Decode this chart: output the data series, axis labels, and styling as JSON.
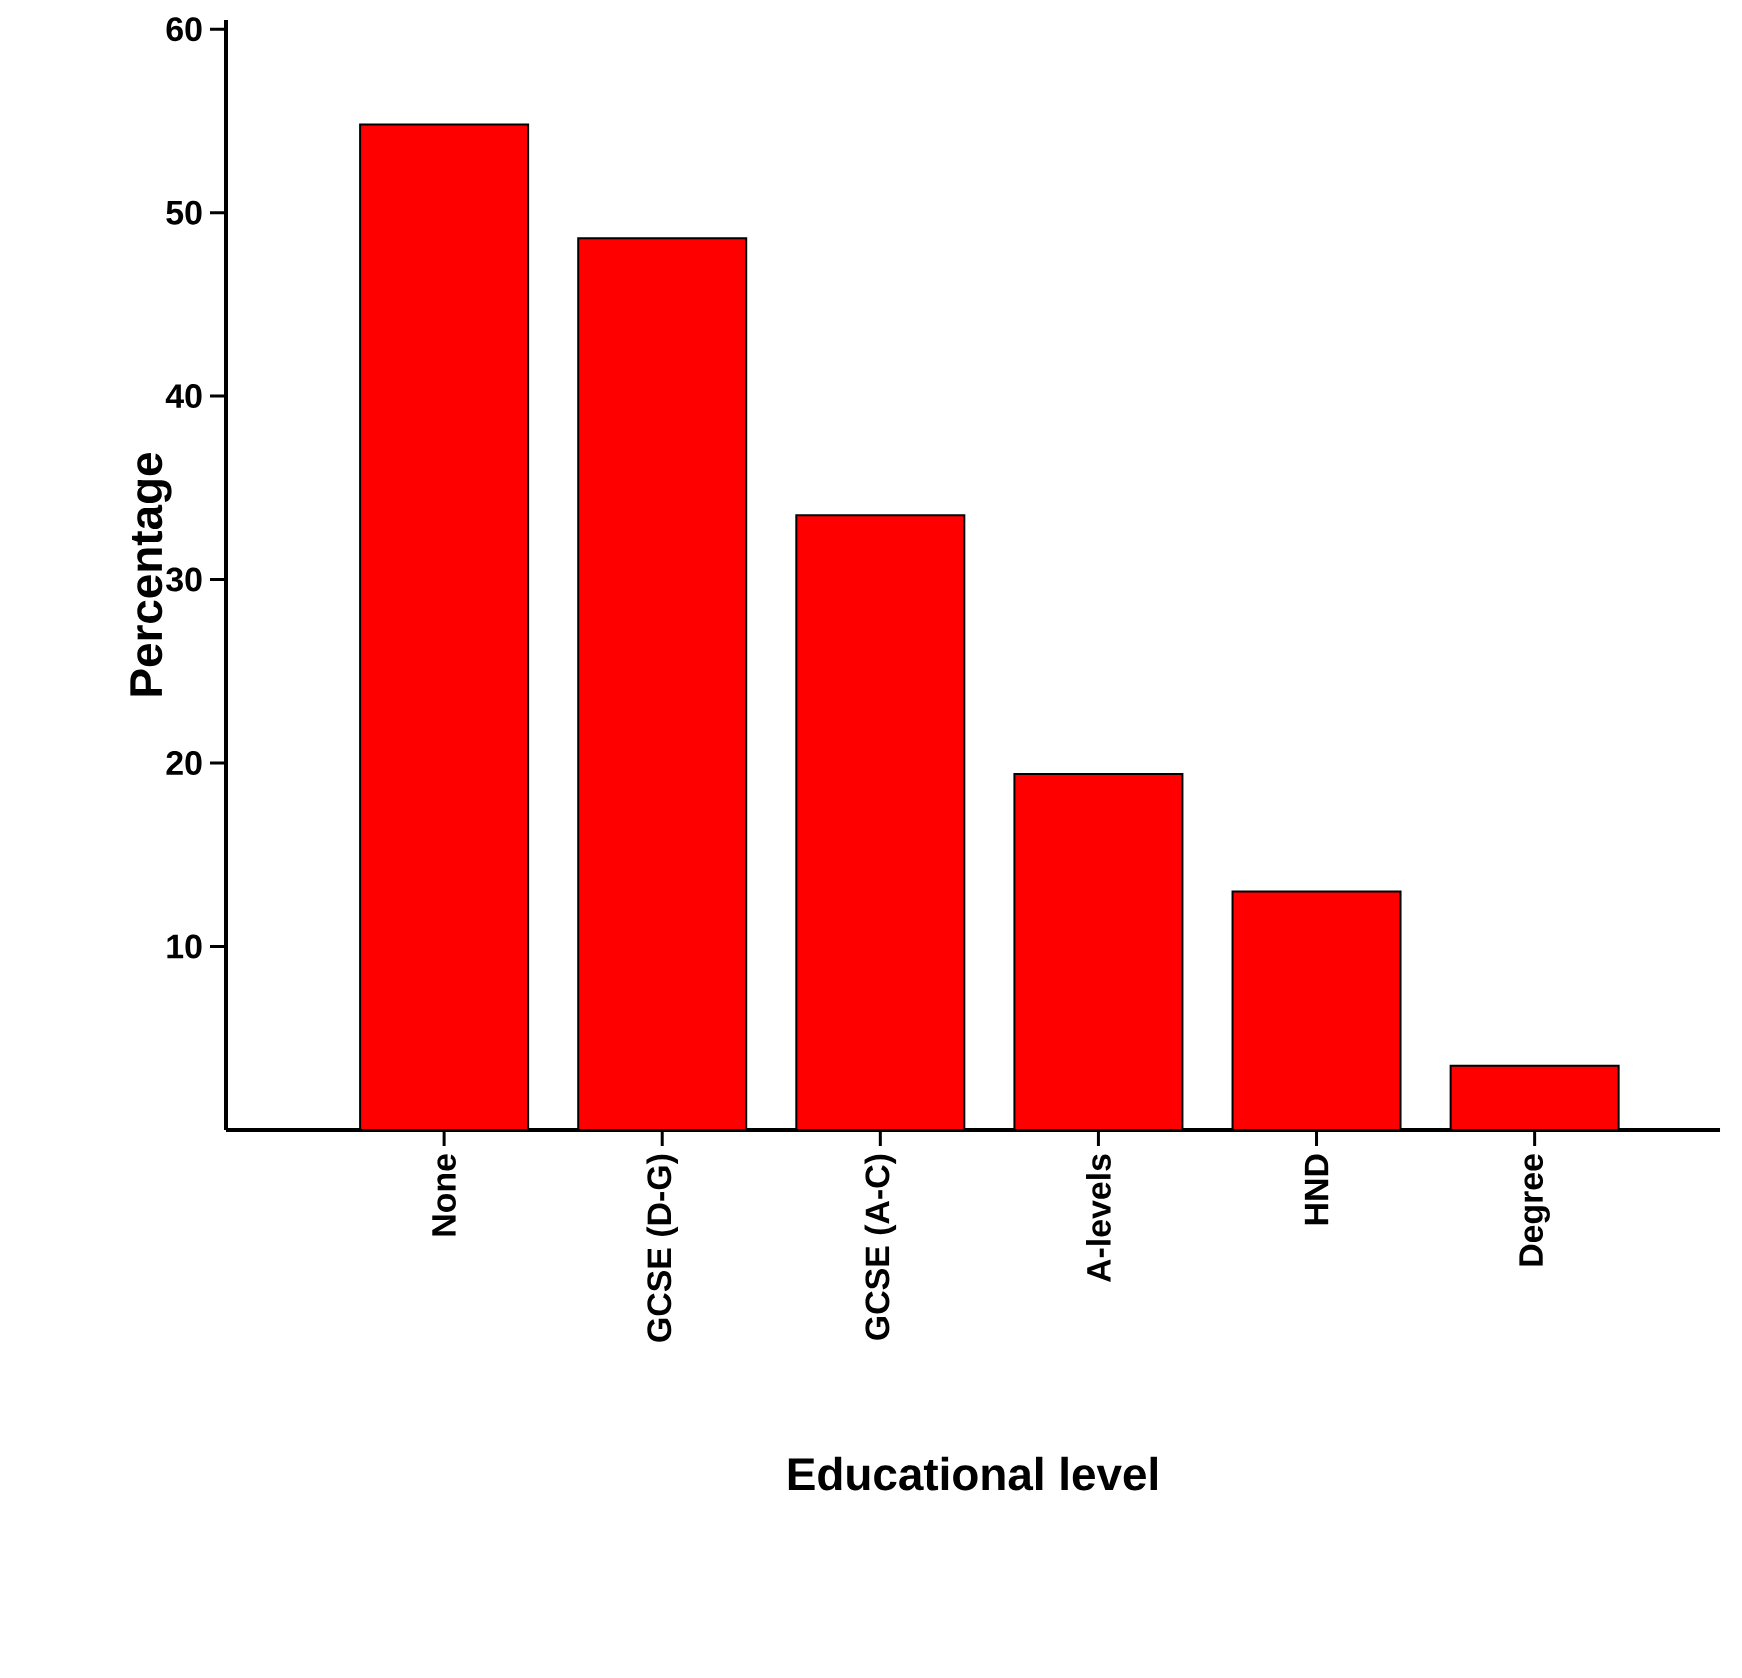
{
  "chart_data": {
    "type": "bar",
    "xlabel": "Educational level",
    "ylabel": "Percentage",
    "categories": [
      "None",
      "GCSE (D-G)",
      "GCSE (A-C)",
      "A-levels",
      "HND",
      "Degree"
    ],
    "values": [
      54.8,
      48.6,
      33.5,
      19.4,
      13,
      3.5
    ],
    "color": "#ff0000",
    "ylim": [
      0,
      60.5
    ],
    "yticks": [
      10,
      20,
      30,
      40,
      50,
      60
    ],
    "grid": false
  }
}
